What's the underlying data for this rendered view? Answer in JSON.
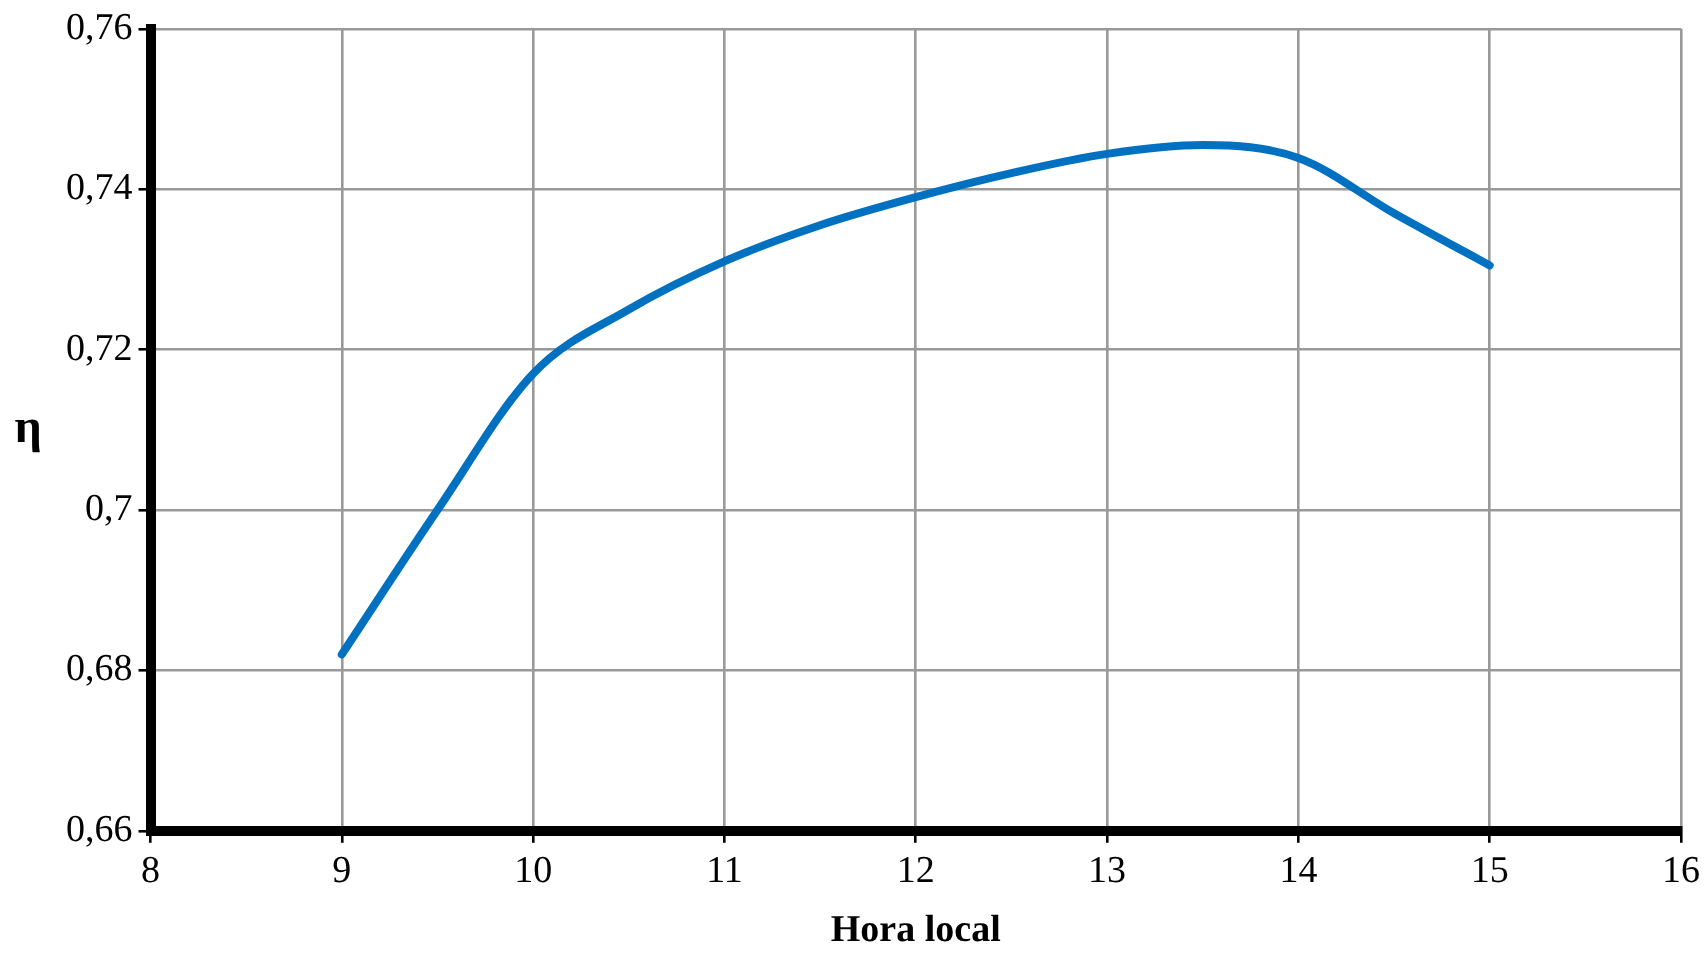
{
  "chart_data": {
    "type": "line",
    "xlabel": "Hora local",
    "ylabel": "η",
    "x": [
      9,
      9.5,
      10,
      10.5,
      11,
      11.5,
      12,
      12.5,
      13,
      13.5,
      14,
      14.5,
      15
    ],
    "series": [
      {
        "color": "#0070c0",
        "values": [
          0.682,
          0.7,
          0.717,
          0.725,
          0.731,
          0.7355,
          0.739,
          0.742,
          0.7444,
          0.7455,
          0.7439,
          0.737,
          0.7305
        ]
      }
    ],
    "xlim": [
      8,
      16
    ],
    "xticks": [
      8,
      9,
      10,
      11,
      12,
      13,
      14,
      15,
      16
    ],
    "ylim": [
      0.66,
      0.76
    ],
    "yticks": [
      {
        "value": 0.66,
        "label": "0,66"
      },
      {
        "value": 0.68,
        "label": "0,68"
      },
      {
        "value": 0.7,
        "label": "0,7"
      },
      {
        "value": 0.72,
        "label": "0,72"
      },
      {
        "value": 0.74,
        "label": "0,74"
      },
      {
        "value": 0.76,
        "label": "0,76"
      }
    ],
    "grid": true,
    "legend": false,
    "marker": "none",
    "line_style": "solid"
  }
}
